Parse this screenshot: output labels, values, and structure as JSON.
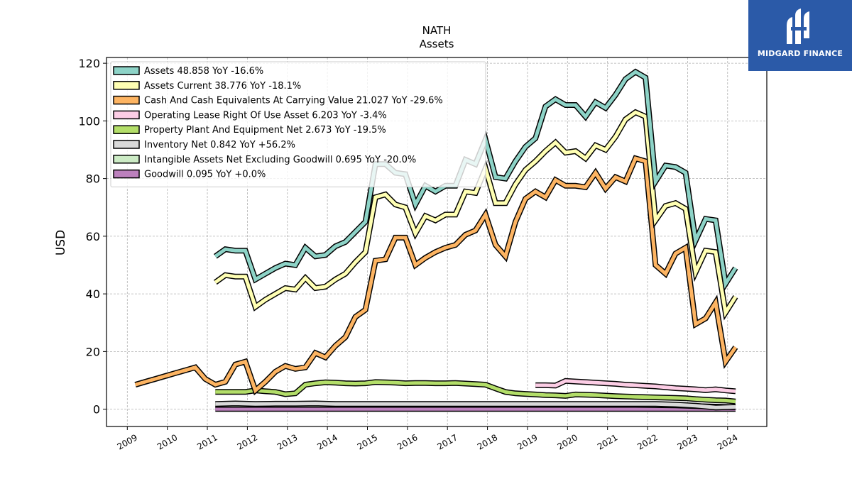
{
  "chart_data": {
    "type": "line",
    "title": "NATH",
    "subtitle": "Assets",
    "ylabel": "USD",
    "xlabel": "",
    "ylim": [
      -6,
      122
    ],
    "xlim": [
      2008.48,
      2024.98
    ],
    "yticks": [
      0,
      20,
      40,
      60,
      80,
      100,
      120
    ],
    "xticks": [
      "2009",
      "2010",
      "2011",
      "2012",
      "2013",
      "2014",
      "2015",
      "2016",
      "2017",
      "2018",
      "2019",
      "2020",
      "2021",
      "2022",
      "2023",
      "2024"
    ],
    "grid": true,
    "legend_position": "top-left",
    "series": [
      {
        "name": "Assets  48.858 YoY -16.6%",
        "color": "#8dd3c7",
        "x": [
          2011.2,
          2011.45,
          2011.7,
          2011.95,
          2012.2,
          2012.45,
          2012.7,
          2012.95,
          2013.2,
          2013.45,
          2013.7,
          2013.95,
          2014.2,
          2014.45,
          2014.7,
          2014.95,
          2015.2,
          2015.45,
          2015.7,
          2015.95,
          2016.2,
          2016.45,
          2016.7,
          2016.95,
          2017.2,
          2017.45,
          2017.7,
          2017.95,
          2018.2,
          2018.45,
          2018.7,
          2018.95,
          2019.2,
          2019.45,
          2019.7,
          2019.95,
          2020.2,
          2020.45,
          2020.7,
          2020.95,
          2021.2,
          2021.45,
          2021.7,
          2021.95,
          2022.2,
          2022.45,
          2022.7,
          2022.95,
          2023.2,
          2023.45,
          2023.7,
          2023.95,
          2024.2
        ],
        "y": [
          53,
          55.5,
          55,
          55,
          45,
          47,
          49,
          50.5,
          50,
          56,
          53,
          53.5,
          56.5,
          58,
          61.5,
          65,
          85,
          85,
          82,
          81.5,
          71,
          77.5,
          75.5,
          77.5,
          77.5,
          86.5,
          85,
          93.5,
          80.5,
          80,
          86,
          91,
          94,
          105,
          107.5,
          105.5,
          105.5,
          101.5,
          106.5,
          104.5,
          109,
          114.5,
          117,
          115,
          79,
          84.5,
          84,
          82,
          58.5,
          66,
          65.5,
          43.5,
          49
        ]
      },
      {
        "name": "Assets Current  38.776 YoY -18.1%",
        "color": "#ffffb3",
        "x": [
          2011.2,
          2011.45,
          2011.7,
          2011.95,
          2012.2,
          2012.45,
          2012.7,
          2012.95,
          2013.2,
          2013.45,
          2013.7,
          2013.95,
          2014.2,
          2014.45,
          2014.7,
          2014.95,
          2015.2,
          2015.45,
          2015.7,
          2015.95,
          2016.2,
          2016.45,
          2016.7,
          2016.95,
          2017.2,
          2017.45,
          2017.7,
          2017.95,
          2018.2,
          2018.45,
          2018.7,
          2018.95,
          2019.2,
          2019.45,
          2019.7,
          2019.95,
          2020.2,
          2020.45,
          2020.7,
          2020.95,
          2021.2,
          2021.45,
          2021.7,
          2021.95,
          2022.2,
          2022.45,
          2022.7,
          2022.95,
          2023.2,
          2023.45,
          2023.7,
          2023.95,
          2024.2
        ],
        "y": [
          44,
          46.5,
          46,
          46,
          35.5,
          38,
          40,
          42,
          41.5,
          45.5,
          42,
          42.5,
          45,
          47,
          51,
          54.5,
          73.5,
          74.5,
          71,
          70,
          61,
          67,
          65.5,
          67.5,
          67.5,
          75.5,
          75,
          83.5,
          71.5,
          71.5,
          78,
          83,
          86,
          89.5,
          92.5,
          89,
          89.5,
          87,
          91.5,
          90,
          94.5,
          100.5,
          103,
          101.5,
          65.5,
          70.5,
          71.5,
          69.5,
          47.5,
          55,
          54.5,
          33.5,
          39
        ]
      },
      {
        "name": "Cash And Cash Equivalents At Carrying Value  21.027 YoY -29.6%",
        "color": "#fdb462",
        "x": [
          2009.2,
          2009.45,
          2009.7,
          2009.95,
          2010.2,
          2010.45,
          2010.7,
          2010.95,
          2011.2,
          2011.45,
          2011.7,
          2011.95,
          2012.2,
          2012.45,
          2012.7,
          2012.95,
          2013.2,
          2013.45,
          2013.7,
          2013.95,
          2014.2,
          2014.45,
          2014.7,
          2014.95,
          2015.2,
          2015.45,
          2015.7,
          2015.95,
          2016.2,
          2016.45,
          2016.7,
          2016.95,
          2017.2,
          2017.45,
          2017.7,
          2017.95,
          2018.2,
          2018.45,
          2018.7,
          2018.95,
          2019.2,
          2019.45,
          2019.7,
          2019.95,
          2020.2,
          2020.45,
          2020.7,
          2020.95,
          2021.2,
          2021.45,
          2021.7,
          2021.95,
          2022.2,
          2022.45,
          2022.7,
          2022.95,
          2023.2,
          2023.45,
          2023.7,
          2023.95,
          2024.2
        ],
        "y": [
          8.5,
          9.5,
          10.5,
          11.5,
          12.5,
          13.5,
          14.5,
          10.5,
          8.5,
          9.5,
          15.5,
          16.5,
          6.5,
          9.5,
          13,
          15,
          14,
          14.5,
          19.5,
          18,
          22,
          25,
          32,
          34.5,
          51.5,
          52,
          59.5,
          59.5,
          50,
          52.5,
          54.5,
          56,
          57,
          60.5,
          62,
          67.5,
          57,
          53,
          65,
          73,
          75.5,
          73.5,
          79.5,
          77.5,
          77.5,
          77,
          82,
          76.5,
          80.5,
          79,
          87,
          86,
          50,
          47,
          54,
          56,
          29.5,
          31.5,
          37,
          16.5,
          21.5
        ]
      },
      {
        "name": "Operating Lease Right Of Use Asset  6.203 YoY -3.4%",
        "color": "#fccde5",
        "x": [
          2019.2,
          2019.45,
          2019.7,
          2019.95,
          2020.2,
          2020.45,
          2020.7,
          2020.95,
          2021.2,
          2021.45,
          2021.7,
          2021.95,
          2022.2,
          2022.45,
          2022.7,
          2022.95,
          2023.2,
          2023.45,
          2023.7,
          2023.95,
          2024.2
        ],
        "y": [
          8.3,
          8.3,
          8.2,
          9.8,
          9.6,
          9.4,
          9.2,
          9.0,
          8.8,
          8.5,
          8.3,
          8.1,
          7.9,
          7.6,
          7.3,
          7.1,
          6.9,
          6.6,
          6.9,
          6.5,
          6.2
        ]
      },
      {
        "name": "Property Plant And Equipment Net  2.673 YoY -19.5%",
        "color": "#b3de69",
        "x": [
          2011.2,
          2011.45,
          2011.7,
          2011.95,
          2012.2,
          2012.45,
          2012.7,
          2012.95,
          2013.2,
          2013.45,
          2013.7,
          2013.95,
          2014.2,
          2014.45,
          2014.7,
          2014.95,
          2015.2,
          2015.45,
          2015.7,
          2015.95,
          2016.2,
          2016.45,
          2016.7,
          2016.95,
          2017.2,
          2017.45,
          2017.7,
          2017.95,
          2018.2,
          2018.45,
          2018.7,
          2018.95,
          2019.2,
          2019.45,
          2019.7,
          2019.95,
          2020.2,
          2020.45,
          2020.7,
          2020.95,
          2021.2,
          2021.45,
          2021.7,
          2021.95,
          2022.2,
          2022.45,
          2022.7,
          2022.95,
          2023.2,
          2023.45,
          2023.7,
          2023.95,
          2024.2
        ],
        "y": [
          6,
          6,
          6,
          6,
          6.5,
          6.2,
          6,
          5.2,
          5.5,
          8.5,
          9,
          9.3,
          9.2,
          9.0,
          8.9,
          9.0,
          9.4,
          9.3,
          9.2,
          9.0,
          9.1,
          9.1,
          9.0,
          9.0,
          9.1,
          8.9,
          8.7,
          8.5,
          7.2,
          6.0,
          5.5,
          5.3,
          5.1,
          4.9,
          4.8,
          4.6,
          5.1,
          5.0,
          4.9,
          4.7,
          4.5,
          4.4,
          4.3,
          4.2,
          4.1,
          4.0,
          3.9,
          3.8,
          3.5,
          3.3,
          3.1,
          3.0,
          2.7
        ]
      },
      {
        "name": "Inventory Net  0.842 YoY +56.2%",
        "color": "#d9d9d9",
        "x": [
          2011.2,
          2011.7,
          2012.2,
          2012.7,
          2013.2,
          2013.7,
          2014.2,
          2014.7,
          2015.2,
          2015.7,
          2016.2,
          2016.7,
          2017.2,
          2017.7,
          2018.2,
          2018.7,
          2019.2,
          2019.7,
          2020.2,
          2020.7,
          2021.2,
          2021.7,
          2022.2,
          2022.7,
          2023.2,
          2023.7,
          2024.2
        ],
        "y": [
          1.8,
          2.0,
          1.8,
          1.9,
          1.9,
          2.0,
          1.8,
          1.8,
          1.8,
          1.8,
          1.8,
          1.8,
          1.8,
          1.8,
          1.8,
          1.8,
          1.8,
          1.8,
          1.8,
          1.8,
          1.8,
          1.8,
          1.8,
          1.6,
          1.2,
          0.6,
          0.8
        ]
      },
      {
        "name": "Intangible Assets Net Excluding Goodwill  0.695 YoY -20.0%",
        "color": "#ccebc5",
        "x": [
          2011.2,
          2011.7,
          2012.2,
          2012.7,
          2013.2,
          2013.7,
          2014.2,
          2014.7,
          2015.2,
          2015.7,
          2016.2,
          2016.7,
          2017.2,
          2017.7,
          2018.2,
          2018.7,
          2019.2,
          2019.7,
          2020.2,
          2020.7,
          2021.2,
          2021.7,
          2022.2,
          2022.7,
          2023.2,
          2023.7,
          2024.2
        ],
        "y": [
          1.5,
          1.5,
          1.5,
          1.5,
          1.5,
          1.5,
          1.5,
          1.5,
          1.5,
          1.5,
          1.5,
          1.5,
          1.5,
          1.5,
          1.5,
          1.5,
          1.5,
          1.5,
          1.5,
          1.5,
          1.5,
          1.5,
          1.4,
          1.3,
          1.1,
          0.9,
          0.7
        ]
      },
      {
        "name": "Goodwill  0.095 YoY +0.0%",
        "color": "#bc80bd",
        "x": [
          2011.2,
          2024.2
        ],
        "y": [
          0.095,
          0.095
        ]
      }
    ]
  },
  "logo": {
    "text": "MIDGARD FINANCE"
  }
}
